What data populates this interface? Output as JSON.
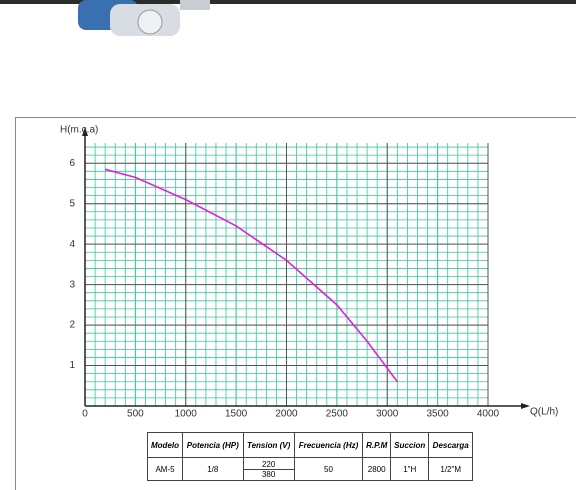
{
  "chart_data": {
    "type": "line",
    "y_label": "H(m.c.a)",
    "x_label": "Q(L/h)",
    "x": [
      200,
      500,
      1000,
      1500,
      2000,
      2500,
      2800,
      3100
    ],
    "series": [
      {
        "color": "#e020e0",
        "values": [
          5.85,
          5.65,
          5.1,
          4.45,
          3.6,
          2.5,
          1.6,
          0.6
        ]
      }
    ],
    "xlim": [
      0,
      4000
    ],
    "xticks": [
      0,
      500,
      1000,
      1500,
      2000,
      2500,
      3000,
      3500,
      4000
    ],
    "ylim": [
      0,
      6.5
    ],
    "yticks": [
      1,
      2,
      3,
      4,
      5,
      6
    ],
    "grid": true
  },
  "table": {
    "header": [
      "Modelo",
      "Potencia (HP)",
      "Tension (V)",
      "Frecuencia (Hz)",
      "R.P.M",
      "Succion",
      "Descarga"
    ],
    "rows": [
      [
        "AM-5",
        "1/8",
        [
          "220",
          "380"
        ],
        "50",
        "2800",
        "1\"H",
        "1/2\"M"
      ]
    ]
  }
}
